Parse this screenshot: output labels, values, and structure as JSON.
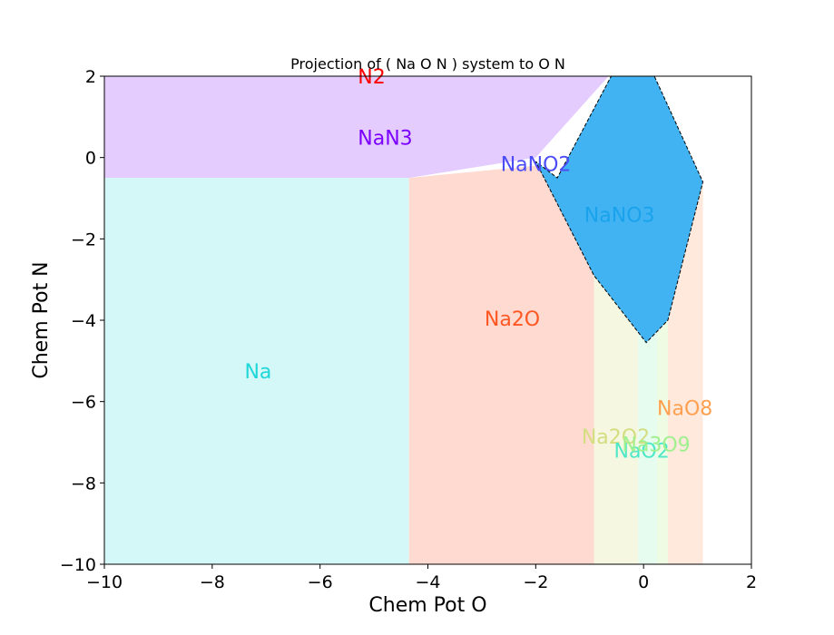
{
  "chart_data": {
    "type": "area",
    "title": "Projection of ( Na O N ) system to O N",
    "xlabel": "Chem Pot O",
    "ylabel": "Chem Pot N",
    "xlim": [
      -10,
      2
    ],
    "ylim": [
      -10,
      2
    ],
    "xticks": [
      -10,
      -8,
      -6,
      -4,
      -2,
      0,
      2
    ],
    "yticks": [
      -10,
      -8,
      -6,
      -4,
      -2,
      0,
      2
    ],
    "xtick_labels": [
      "−10",
      "−8",
      "−6",
      "−4",
      "−2",
      "0",
      "2"
    ],
    "ytick_labels": [
      "−10",
      "−8",
      "−6",
      "−4",
      "−2",
      "0",
      "2"
    ],
    "grid": false,
    "regions": [
      {
        "name": "NaN3",
        "color": "#e4ccff",
        "label_color": "#7b00ff",
        "label_at": [
          -5.3,
          0.5
        ],
        "polygon": [
          [
            -10,
            2
          ],
          [
            -0.65,
            2
          ],
          [
            -2.0,
            0.0
          ],
          [
            -4.35,
            -0.5
          ],
          [
            -10,
            -0.5
          ]
        ]
      },
      {
        "name": "N2",
        "color": "#e4ccff",
        "label_color": "#ff0000",
        "label_at": [
          -5.3,
          2.0
        ],
        "polygon": []
      },
      {
        "name": "Na",
        "color": "#d4f7f7",
        "label_color": "#1fd7d9",
        "label_at": [
          -7.4,
          -5.25
        ],
        "polygon": [
          [
            -10,
            -0.5
          ],
          [
            -4.35,
            -0.5
          ],
          [
            -4.35,
            -10
          ],
          [
            -10,
            -10
          ]
        ]
      },
      {
        "name": "Na2O",
        "color": "#ffdad1",
        "label_color": "#ff5722",
        "label_at": [
          -2.95,
          -3.95
        ],
        "polygon": [
          [
            -4.35,
            -0.5
          ],
          [
            -2.0,
            -0.2
          ],
          [
            -1.2,
            -1.5
          ],
          [
            -0.92,
            -2.3
          ],
          [
            -0.92,
            -10
          ],
          [
            -4.35,
            -10
          ]
        ]
      },
      {
        "name": "NaNO2",
        "color": "#ffdad1",
        "label_color": "#4b4cf5",
        "label_at": [
          -2.65,
          -0.15
        ],
        "polygon": []
      },
      {
        "name": "Na2O2",
        "color": "#f5f7e1",
        "label_color": "#d4dd80",
        "label_at": [
          -1.15,
          -6.85
        ],
        "polygon": [
          [
            -0.92,
            -2.3
          ],
          [
            -0.1,
            -4.3
          ],
          [
            -0.1,
            -10
          ],
          [
            -0.92,
            -10
          ]
        ]
      },
      {
        "name": "NaO2",
        "color": "#e6fcef",
        "label_color": "#4ee8c8",
        "label_at": [
          -0.55,
          -7.2
        ],
        "polygon": [
          [
            -0.1,
            -4.3
          ],
          [
            0.05,
            -4.55
          ],
          [
            0.25,
            -4.3
          ],
          [
            0.25,
            -10
          ],
          [
            -0.1,
            -10
          ]
        ]
      },
      {
        "name": "Na3O9",
        "color": "#eefce4",
        "label_color": "#a0f090",
        "label_at": [
          -0.4,
          -7.05
        ],
        "polygon": [
          [
            0.25,
            -4.3
          ],
          [
            0.45,
            -4.0
          ],
          [
            0.45,
            -10
          ],
          [
            0.25,
            -10
          ]
        ]
      },
      {
        "name": "NaO8",
        "color": "#ffe9dc",
        "label_color": "#ffa050",
        "label_at": [
          0.25,
          -6.15
        ],
        "polygon": [
          [
            0.45,
            -4.0
          ],
          [
            1.1,
            -0.6
          ],
          [
            1.1,
            -10
          ],
          [
            0.45,
            -10
          ]
        ]
      },
      {
        "name": "NaNO3",
        "color": "#41b3f2",
        "label_color": "#1aa3ec",
        "label_at": [
          -1.1,
          -1.4
        ],
        "dashed": true,
        "polygon": [
          [
            -0.6,
            2
          ],
          [
            0.2,
            2
          ],
          [
            1.1,
            -0.6
          ],
          [
            0.45,
            -4.0
          ],
          [
            0.05,
            -4.55
          ],
          [
            -0.92,
            -2.9
          ],
          [
            -2.0,
            -0.1
          ],
          [
            -1.6,
            -0.5
          ]
        ]
      }
    ]
  }
}
